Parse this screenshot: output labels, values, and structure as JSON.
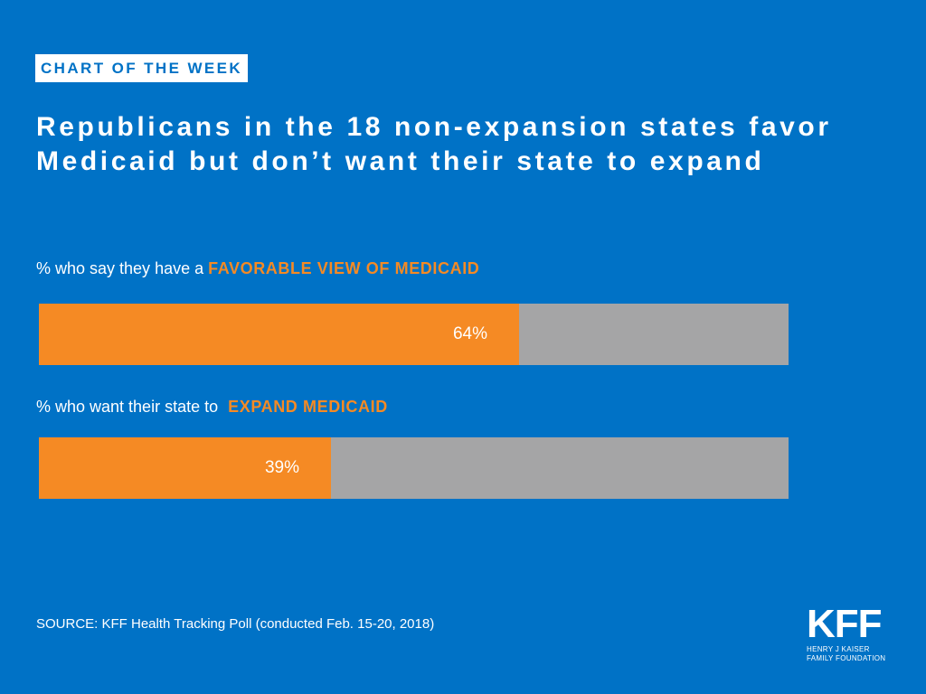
{
  "tag": "CHART OF THE WEEK",
  "title_line1": "Republicans in the 18 non-expansion states favor",
  "title_line2": "Medicaid but don’t want their state to expand",
  "colors": {
    "background": "#0072c6",
    "bar_fill": "#f58a24",
    "bar_track": "#a5a5a6",
    "text": "#ffffff"
  },
  "source": "SOURCE: KFF Health Tracking Poll (conducted Feb. 15-20, 2018)",
  "logo": {
    "mark": "KFF",
    "line1": "HENRY J KAISER",
    "line2": "FAMILY FOUNDATION"
  },
  "chart_data": {
    "type": "bar",
    "orientation": "horizontal",
    "xlim": [
      0,
      100
    ],
    "bars": [
      {
        "label_prefix": "% who say they have a",
        "label_highlight": "FAVORABLE VIEW OF MEDICAID",
        "value": 64,
        "value_label": "64%"
      },
      {
        "label_prefix": "% who want their state to",
        "label_highlight": "EXPAND MEDICAID",
        "value": 39,
        "value_label": "39%"
      }
    ]
  }
}
